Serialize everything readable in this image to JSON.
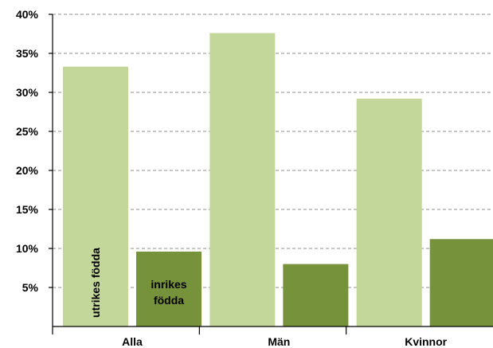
{
  "chart_data": {
    "type": "bar",
    "categories": [
      "Alla",
      "Män",
      "Kvinnor"
    ],
    "series": [
      {
        "name": "utrikes födda",
        "values": [
          33.3,
          37.6,
          29.2
        ],
        "color": "#c4d79b"
      },
      {
        "name": "inrikes födda",
        "values": [
          9.6,
          8.0,
          11.2
        ],
        "color": "#76933c"
      }
    ],
    "ylim": [
      0,
      40
    ],
    "yticks": [
      "5%",
      "10%",
      "15%",
      "20%",
      "25%",
      "30%",
      "35%",
      "40%"
    ],
    "grid": true,
    "legend": "none"
  }
}
